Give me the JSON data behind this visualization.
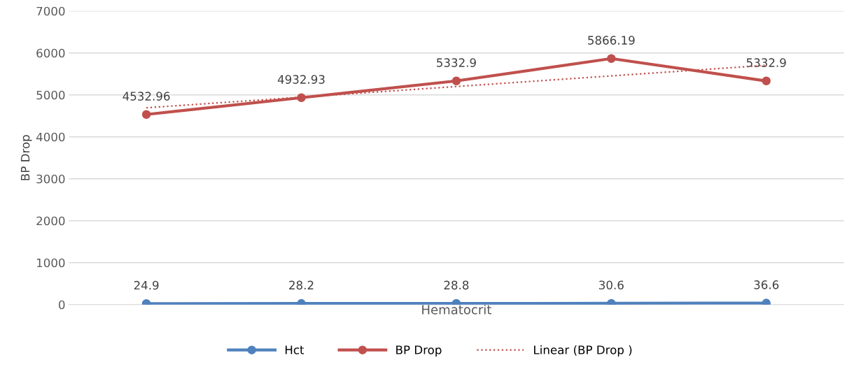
{
  "chart_data": {
    "type": "line",
    "xlabel": "Hematocrit",
    "ylabel": "BP Drop",
    "categories": [
      null,
      null,
      null,
      null,
      null
    ],
    "series": [
      {
        "name": "Hct",
        "color": "#4f81bd",
        "values": [
          24.9,
          28.2,
          28.8,
          30.6,
          36.6
        ],
        "value_labels": [
          "24.9",
          "28.2",
          "28.8",
          "30.6",
          "36.6"
        ],
        "marker": "circle",
        "line_style": "solid"
      },
      {
        "name": "BP Drop",
        "color": "#c0504d",
        "values": [
          4532.96,
          4932.93,
          5332.9,
          5866.19,
          5332.9
        ],
        "value_labels": [
          "4532.96",
          "4932.93",
          "5332.9",
          "5866.19",
          "5332.9"
        ],
        "marker": "circle",
        "line_style": "solid"
      },
      {
        "name": "Linear (BP Drop )",
        "color": "#c0504d",
        "values": [
          4693,
          4946,
          5200,
          5453,
          5706
        ],
        "marker": "none",
        "line_style": "dotted"
      }
    ],
    "ylim": [
      0,
      7000
    ],
    "yticks": [
      0,
      1000,
      2000,
      3000,
      4000,
      5000,
      6000,
      7000
    ],
    "grid": "y",
    "legend": "bottom",
    "tick_labels": "y"
  }
}
